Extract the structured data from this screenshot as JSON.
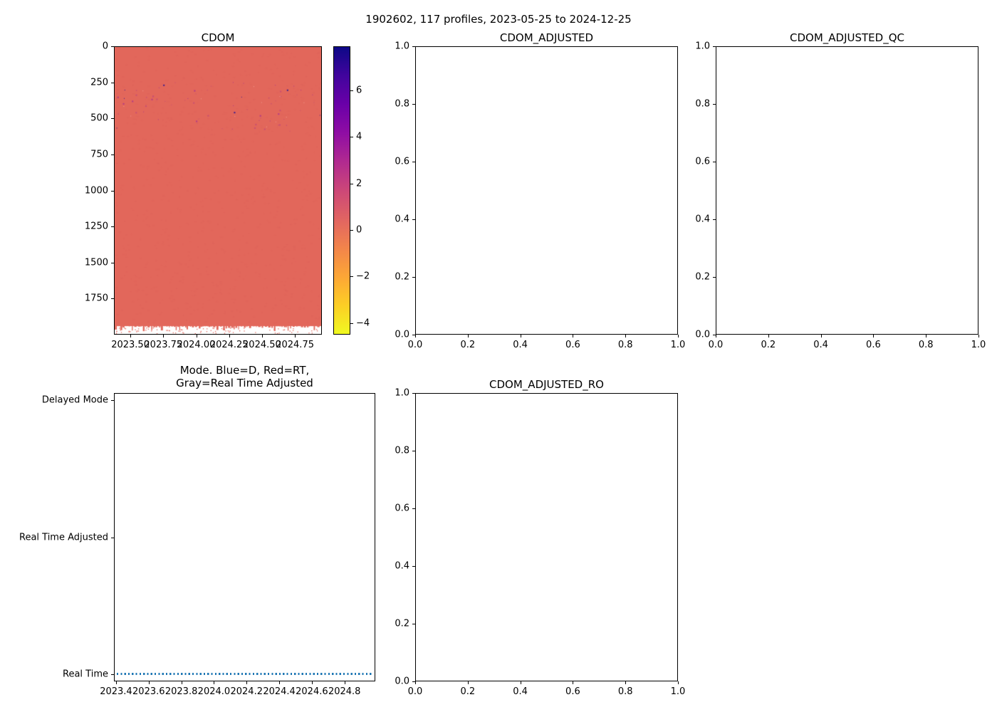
{
  "figure": {
    "title": "1902602, 117 profiles, 2023-05-25 to 2024-12-25",
    "background": "#ffffff"
  },
  "chart_data": [
    {
      "id": "cdom",
      "type": "heatmap",
      "title": "CDOM",
      "x_tick_labels": [
        "2023.50",
        "2023.75",
        "2024.00",
        "2024.25",
        "2024.50",
        "2024.75"
      ],
      "x_tick_values": [
        2023.5,
        2023.75,
        2024.0,
        2024.25,
        2024.5,
        2024.75
      ],
      "xlim": [
        2023.375,
        2024.955
      ],
      "y_tick_labels": [
        "0",
        "250",
        "500",
        "750",
        "1000",
        "1250",
        "1500",
        "1750"
      ],
      "y_tick_values": [
        0,
        250,
        500,
        750,
        1000,
        1250,
        1500,
        1750
      ],
      "ylim_top": 0,
      "ylim_bottom": 2000,
      "y_axis_meaning": "pressure/depth, 0 at top",
      "base_value": 0.3,
      "base_color": "#e2675b",
      "speckle_band_depth": [
        250,
        580
      ],
      "missing_data_depth": [
        1945,
        2000
      ],
      "colorbar": {
        "tick_labels": [
          "6",
          "4",
          "2",
          "0",
          "−2",
          "−4"
        ],
        "tick_values": [
          6,
          4,
          2,
          0,
          -2,
          -4
        ],
        "vmin": -4.5,
        "vmax": 7.9,
        "colormap": "plasma_r",
        "gradient_top_to_bottom": [
          "#0d0887",
          "#41049d",
          "#6a00a8",
          "#8f0da4",
          "#b12a90",
          "#cc4778",
          "#e16462",
          "#f2844b",
          "#fca636",
          "#fcce25",
          "#f0f921"
        ]
      }
    },
    {
      "id": "cdom_adjusted",
      "type": "empty",
      "title": "CDOM_ADJUSTED",
      "x_tick_labels": [
        "0.0",
        "0.2",
        "0.4",
        "0.6",
        "0.8",
        "1.0"
      ],
      "x_tick_values": [
        0,
        0.2,
        0.4,
        0.6,
        0.8,
        1.0
      ],
      "xlim": [
        0,
        1
      ],
      "y_tick_labels": [
        "0.0",
        "0.2",
        "0.4",
        "0.6",
        "0.8",
        "1.0"
      ],
      "y_tick_values": [
        0,
        0.2,
        0.4,
        0.6,
        0.8,
        1.0
      ],
      "ylim_top": 1,
      "ylim_bottom": 0
    },
    {
      "id": "cdom_adjusted_qc",
      "type": "empty",
      "title": "CDOM_ADJUSTED_QC",
      "x_tick_labels": [
        "0.0",
        "0.2",
        "0.4",
        "0.6",
        "0.8",
        "1.0"
      ],
      "x_tick_values": [
        0,
        0.2,
        0.4,
        0.6,
        0.8,
        1.0
      ],
      "xlim": [
        0,
        1
      ],
      "y_tick_labels": [
        "0.0",
        "0.2",
        "0.4",
        "0.6",
        "0.8",
        "1.0"
      ],
      "y_tick_values": [
        0,
        0.2,
        0.4,
        0.6,
        0.8,
        1.0
      ],
      "ylim_top": 1,
      "ylim_bottom": 0
    },
    {
      "id": "mode",
      "type": "scatter",
      "title_line1": "Mode. Blue=D, Red=RT,",
      "title_line2": "Gray=Real Time Adjusted",
      "x_tick_labels": [
        "2023.4",
        "2023.6",
        "2023.8",
        "2024.0",
        "2024.2",
        "2024.4",
        "2024.6",
        "2024.8"
      ],
      "x_tick_values": [
        2023.4,
        2023.6,
        2023.8,
        2024.0,
        2024.2,
        2024.4,
        2024.6,
        2024.8
      ],
      "xlim": [
        2023.387,
        2024.989
      ],
      "y_tick_labels": [
        "Delayed Mode",
        "Real Time Adjusted",
        "Real Time"
      ],
      "y_tick_values": [
        2,
        1,
        0
      ],
      "ylim_top": 2.05,
      "ylim_bottom": -0.05,
      "series": [
        {
          "name": "mode",
          "mode_value": "Real Time",
          "color": "#1f77b4",
          "y_value": 0,
          "x_start": 2023.398,
          "x_end": 2024.982,
          "marker": "dot",
          "n_points": 117
        }
      ]
    },
    {
      "id": "cdom_adjusted_ro",
      "type": "empty",
      "title": "CDOM_ADJUSTED_RO",
      "x_tick_labels": [
        "0.0",
        "0.2",
        "0.4",
        "0.6",
        "0.8",
        "1.0"
      ],
      "x_tick_values": [
        0,
        0.2,
        0.4,
        0.6,
        0.8,
        1.0
      ],
      "xlim": [
        0,
        1
      ],
      "y_tick_labels": [
        "0.0",
        "0.2",
        "0.4",
        "0.6",
        "0.8",
        "1.0"
      ],
      "y_tick_values": [
        0,
        0.2,
        0.4,
        0.6,
        0.8,
        1.0
      ],
      "ylim_top": 1,
      "ylim_bottom": 0
    }
  ]
}
